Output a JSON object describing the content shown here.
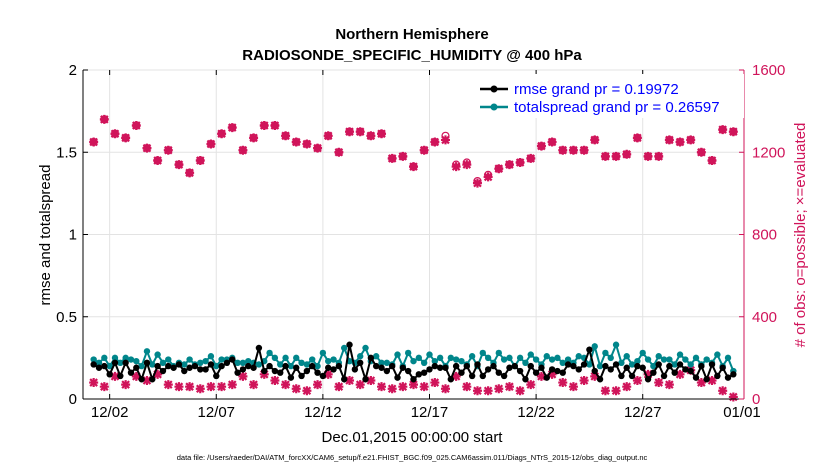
{
  "chart_data": {
    "type": "line",
    "title_line1": "Northern Hemisphere",
    "title_line2": "RADIOSONDE_SPECIFIC_HUMIDITY @ 400 hPa",
    "xlabel": "Dec.01,2015 00:00:00 start",
    "ylabel_left": "rmse and totalspread",
    "ylabel_right": "# of obs: o=possible; ×=evaluated",
    "footer": "data file: /Users/raeder/DAI/ATM_forcXX/CAM6_setup/f.e21.FHIST_BGC.f09_025.CAM6assim.011/Diags_NTrS_2015-12/obs_diag_output.nc",
    "xlim": [
      0.5,
      31.5
    ],
    "ylim_left": [
      0,
      2
    ],
    "ylim_right": [
      0,
      1600
    ],
    "x_ticks": [
      1.75,
      6.75,
      11.75,
      16.75,
      21.75,
      26.75,
      31.75
    ],
    "x_ticklabels": [
      "12/02",
      "12/07",
      "12/12",
      "12/17",
      "12/22",
      "12/27",
      "01/01"
    ],
    "y_left_ticks": [
      0,
      0.5,
      1,
      1.5,
      2
    ],
    "y_left_ticklabels": [
      "0",
      "0.5",
      "1",
      "1.5",
      "2"
    ],
    "y_right_ticks": [
      0,
      400,
      800,
      1200,
      1600
    ],
    "y_right_ticklabels": [
      "0",
      "400",
      "800",
      "1200",
      "1600"
    ],
    "colors": {
      "rmse": "#000000",
      "spread": "#00868b",
      "obs": "#d0145a",
      "legend_text": "#0000ff",
      "axis": "#000000"
    },
    "legend": [
      {
        "label": "rmse grand pr = 0.19972",
        "series": "rmse"
      },
      {
        "label": "totalspread grand pr = 0.26597",
        "series": "spread"
      }
    ],
    "legend_position": "top-right",
    "obs_high_time": [
      1.0,
      1.5,
      2.0,
      2.5,
      3.0,
      3.5,
      4.0,
      4.5,
      5.0,
      5.5,
      6.0,
      6.5,
      7.0,
      7.5,
      8.0,
      8.5,
      9.0,
      9.5,
      10.0,
      10.5,
      11.0,
      11.5,
      12.0,
      12.5,
      13.0,
      13.5,
      14.0,
      14.5,
      15.0,
      15.5,
      16.0,
      16.5,
      17.0,
      17.5,
      18.0,
      18.5,
      19.0,
      19.5,
      20.0,
      20.5,
      21.0,
      21.5,
      22.0,
      22.5,
      23.0,
      23.5,
      24.0,
      24.5,
      25.0,
      25.5,
      26.0,
      26.5,
      27.0,
      27.5,
      28.0,
      28.5,
      29.0,
      29.5,
      30.0,
      30.5,
      31.0
    ],
    "obs_high_possible": [
      1250,
      1360,
      1290,
      1270,
      1330,
      1220,
      1160,
      1210,
      1140,
      1100,
      1160,
      1240,
      1290,
      1320,
      1210,
      1270,
      1330,
      1330,
      1280,
      1250,
      1240,
      1220,
      1280,
      1200,
      1300,
      1300,
      1280,
      1290,
      1170,
      1180,
      1130,
      1210,
      1250,
      1280,
      1140,
      1150,
      1060,
      1090,
      1120,
      1140,
      1150,
      1170,
      1230,
      1250,
      1210,
      1210,
      1210,
      1260,
      1180,
      1180,
      1190,
      1270,
      1180,
      1180,
      1260,
      1250,
      1260,
      1200,
      1160,
      1310,
      1300
    ],
    "obs_high_evaluated": [
      1250,
      1360,
      1290,
      1270,
      1330,
      1220,
      1160,
      1210,
      1140,
      1100,
      1160,
      1240,
      1290,
      1320,
      1210,
      1270,
      1330,
      1330,
      1280,
      1250,
      1240,
      1220,
      1280,
      1200,
      1300,
      1300,
      1280,
      1290,
      1170,
      1180,
      1130,
      1210,
      1250,
      1260,
      1130,
      1140,
      1050,
      1080,
      1120,
      1140,
      1150,
      1170,
      1230,
      1250,
      1210,
      1210,
      1210,
      1260,
      1180,
      1180,
      1190,
      1270,
      1180,
      1180,
      1260,
      1250,
      1260,
      1200,
      1160,
      1310,
      1300
    ],
    "obs_low_time": [
      1.0,
      1.5,
      2.0,
      2.5,
      3.0,
      3.5,
      4.0,
      4.5,
      5.0,
      5.5,
      6.0,
      6.5,
      7.0,
      7.5,
      8.0,
      8.5,
      9.0,
      9.5,
      10.0,
      10.5,
      11.0,
      11.5,
      12.0,
      12.5,
      13.0,
      13.5,
      14.0,
      14.5,
      15.0,
      15.5,
      16.0,
      16.5,
      17.0,
      17.5,
      18.0,
      18.5,
      19.0,
      19.5,
      20.0,
      20.5,
      21.0,
      21.5,
      22.0,
      22.5,
      23.0,
      23.5,
      24.0,
      24.5,
      25.0,
      25.5,
      26.0,
      26.5,
      27.0,
      27.5,
      28.0,
      28.5,
      29.0,
      29.5,
      30.0,
      30.5,
      31.0
    ],
    "obs_low_values": [
      80,
      60,
      110,
      70,
      110,
      90,
      120,
      70,
      60,
      60,
      50,
      60,
      60,
      70,
      110,
      70,
      120,
      90,
      70,
      50,
      40,
      70,
      120,
      60,
      90,
      70,
      90,
      60,
      50,
      60,
      70,
      60,
      80,
      50,
      110,
      60,
      40,
      40,
      50,
      60,
      40,
      70,
      110,
      120,
      80,
      60,
      90,
      110,
      40,
      40,
      60,
      90,
      120,
      80,
      70,
      120,
      140,
      80,
      90,
      40,
      10
    ],
    "time": [
      1.0,
      1.25,
      1.5,
      1.75,
      2.0,
      2.25,
      2.5,
      2.75,
      3.0,
      3.25,
      3.5,
      3.75,
      4.0,
      4.25,
      4.5,
      4.75,
      5.0,
      5.25,
      5.5,
      5.75,
      6.0,
      6.25,
      6.5,
      6.75,
      7.0,
      7.25,
      7.5,
      7.75,
      8.0,
      8.25,
      8.5,
      8.75,
      9.0,
      9.25,
      9.5,
      9.75,
      10.0,
      10.25,
      10.5,
      10.75,
      11.0,
      11.25,
      11.5,
      11.75,
      12.0,
      12.25,
      12.5,
      12.75,
      13.0,
      13.25,
      13.5,
      13.75,
      14.0,
      14.25,
      14.5,
      14.75,
      15.0,
      15.25,
      15.5,
      15.75,
      16.0,
      16.25,
      16.5,
      16.75,
      17.0,
      17.25,
      17.5,
      17.75,
      18.0,
      18.25,
      18.5,
      18.75,
      19.0,
      19.25,
      19.5,
      19.75,
      20.0,
      20.25,
      20.5,
      20.75,
      21.0,
      21.25,
      21.5,
      21.75,
      22.0,
      22.25,
      22.5,
      22.75,
      23.0,
      23.25,
      23.5,
      23.75,
      24.0,
      24.25,
      24.5,
      24.75,
      25.0,
      25.25,
      25.5,
      25.75,
      26.0,
      26.25,
      26.5,
      26.75,
      27.0,
      27.25,
      27.5,
      27.75,
      28.0,
      28.25,
      28.5,
      28.75,
      29.0,
      29.25,
      29.5,
      29.75,
      30.0,
      30.25,
      30.5,
      30.75,
      31.0
    ],
    "rmse": [
      0.21,
      0.19,
      0.2,
      0.15,
      0.22,
      0.14,
      0.22,
      0.16,
      0.19,
      0.12,
      0.22,
      0.12,
      0.2,
      0.17,
      0.2,
      0.19,
      0.21,
      0.17,
      0.19,
      0.2,
      0.18,
      0.18,
      0.21,
      0.14,
      0.2,
      0.22,
      0.24,
      0.16,
      0.18,
      0.2,
      0.19,
      0.31,
      0.17,
      0.2,
      0.17,
      0.16,
      0.2,
      0.13,
      0.19,
      0.14,
      0.17,
      0.2,
      0.16,
      0.14,
      0.19,
      0.18,
      0.2,
      0.12,
      0.33,
      0.18,
      0.22,
      0.12,
      0.25,
      0.2,
      0.19,
      0.17,
      0.2,
      0.13,
      0.19,
      0.17,
      0.12,
      0.15,
      0.16,
      0.18,
      0.2,
      0.19,
      0.19,
      0.12,
      0.2,
      0.16,
      0.2,
      0.14,
      0.21,
      0.14,
      0.18,
      0.2,
      0.16,
      0.14,
      0.19,
      0.2,
      0.17,
      0.12,
      0.2,
      0.16,
      0.19,
      0.13,
      0.18,
      0.17,
      0.16,
      0.21,
      0.2,
      0.18,
      0.21,
      0.3,
      0.17,
      0.12,
      0.2,
      0.18,
      0.21,
      0.14,
      0.19,
      0.14,
      0.2,
      0.19,
      0.12,
      0.16,
      0.21,
      0.14,
      0.2,
      0.16,
      0.21,
      0.18,
      0.17,
      0.13,
      0.2,
      0.12,
      0.21,
      0.14,
      0.19,
      0.13,
      0.15
    ],
    "spread": [
      0.24,
      0.22,
      0.25,
      0.2,
      0.25,
      0.22,
      0.25,
      0.24,
      0.23,
      0.2,
      0.29,
      0.21,
      0.27,
      0.22,
      0.24,
      0.2,
      0.22,
      0.21,
      0.24,
      0.21,
      0.22,
      0.23,
      0.26,
      0.2,
      0.24,
      0.24,
      0.25,
      0.22,
      0.22,
      0.23,
      0.22,
      0.21,
      0.23,
      0.28,
      0.25,
      0.21,
      0.25,
      0.2,
      0.25,
      0.22,
      0.21,
      0.24,
      0.2,
      0.28,
      0.23,
      0.24,
      0.22,
      0.31,
      0.23,
      0.22,
      0.26,
      0.31,
      0.23,
      0.26,
      0.22,
      0.22,
      0.21,
      0.27,
      0.2,
      0.28,
      0.23,
      0.25,
      0.22,
      0.27,
      0.23,
      0.25,
      0.2,
      0.25,
      0.24,
      0.23,
      0.21,
      0.26,
      0.2,
      0.28,
      0.25,
      0.22,
      0.28,
      0.24,
      0.25,
      0.2,
      0.25,
      0.22,
      0.27,
      0.24,
      0.21,
      0.26,
      0.24,
      0.25,
      0.22,
      0.24,
      0.22,
      0.26,
      0.25,
      0.21,
      0.32,
      0.2,
      0.28,
      0.25,
      0.33,
      0.22,
      0.26,
      0.21,
      0.23,
      0.28,
      0.24,
      0.2,
      0.26,
      0.24,
      0.24,
      0.21,
      0.27,
      0.24,
      0.21,
      0.25,
      0.21,
      0.24,
      0.22,
      0.27,
      0.2,
      0.25,
      0.17
    ]
  }
}
